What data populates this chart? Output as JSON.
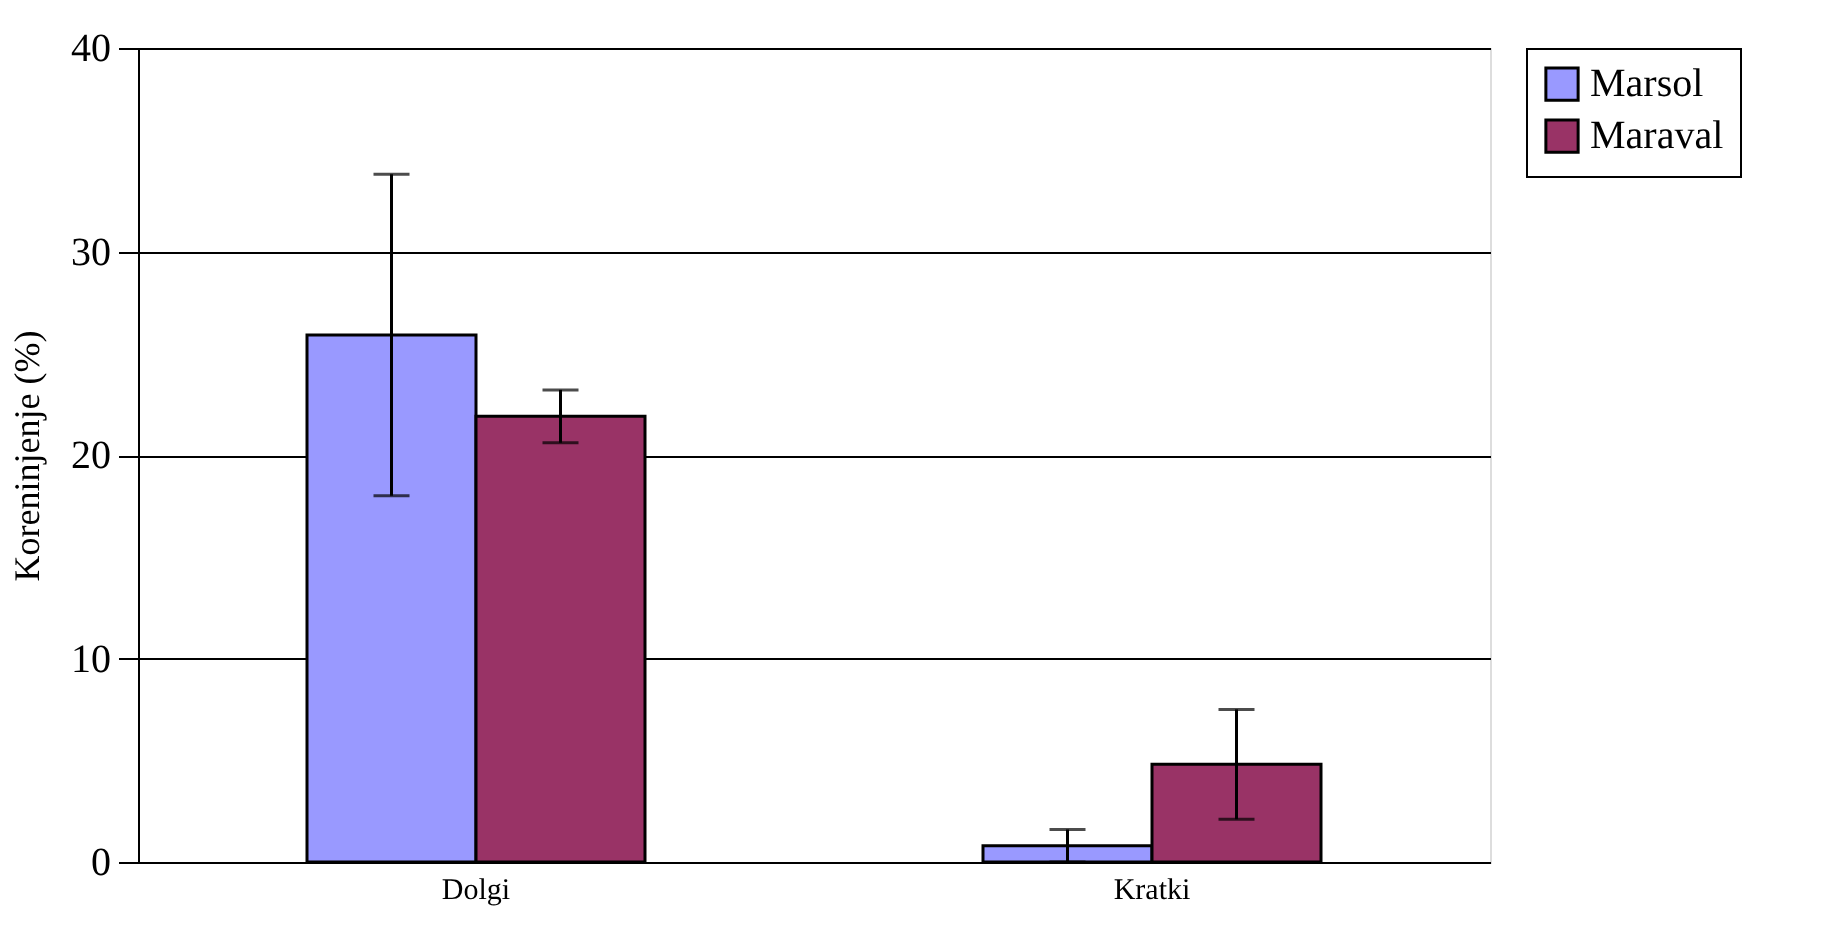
{
  "chart_data": {
    "type": "bar",
    "ylabel": "Koreninjenje (%)",
    "categories": [
      "Dolgi",
      "Kratki"
    ],
    "series": [
      {
        "name": "Marsol",
        "color": "#9999ff",
        "values": [
          25.9,
          0.8
        ],
        "errors": [
          7.9,
          0.8
        ]
      },
      {
        "name": "Maraval",
        "color": "#993366",
        "values": [
          21.9,
          4.8
        ],
        "errors": [
          1.3,
          2.7
        ]
      }
    ],
    "ylim": [
      0,
      40
    ],
    "yticks": [
      0,
      10,
      20,
      30,
      40
    ],
    "grid": "y",
    "legend": "right"
  }
}
